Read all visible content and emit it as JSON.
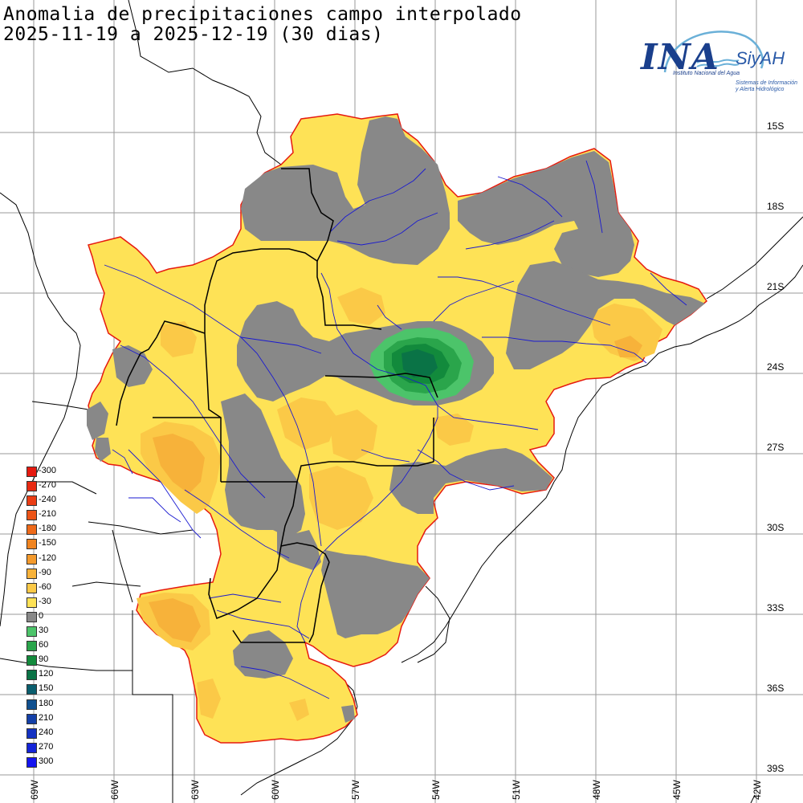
{
  "title_line1": "Anomalia de precipitaciones campo interpolado",
  "title_line2": "2025-11-19 a 2025-12-19 (30 dias)",
  "logo": {
    "main": "INA",
    "product": "SiyAH",
    "subtitle": "Instituto Nacional del Agua",
    "product_subtitle_1": "Sistemas de Información",
    "product_subtitle_2": "y Alerta Hidrológico"
  },
  "latitude_labels": [
    "15S",
    "18S",
    "21S",
    "24S",
    "27S",
    "30S",
    "33S",
    "36S",
    "39S"
  ],
  "longitude_labels": [
    "69W",
    "66W",
    "63W",
    "60W",
    "57W",
    "54W",
    "51W",
    "48W",
    "45W",
    "42W"
  ],
  "legend": [
    {
      "label": "-300",
      "color": "#e6190f"
    },
    {
      "label": "-270",
      "color": "#e82a12"
    },
    {
      "label": "-240",
      "color": "#ea3d14"
    },
    {
      "label": "-210",
      "color": "#ec5417"
    },
    {
      "label": "-180",
      "color": "#ee6a1a"
    },
    {
      "label": "-150",
      "color": "#f08420"
    },
    {
      "label": "-120",
      "color": "#f49a2c"
    },
    {
      "label": "-90",
      "color": "#f7b23a"
    },
    {
      "label": "-60",
      "color": "#fbc947"
    },
    {
      "label": "-30",
      "color": "#fee256"
    },
    {
      "label": "0",
      "color": "#888888"
    },
    {
      "label": "30",
      "color": "#4cc46a"
    },
    {
      "label": "60",
      "color": "#2aa54b"
    },
    {
      "label": "90",
      "color": "#128a3c"
    },
    {
      "label": "120",
      "color": "#0a7346"
    },
    {
      "label": "150",
      "color": "#0a5e6e"
    },
    {
      "label": "180",
      "color": "#10508f"
    },
    {
      "label": "210",
      "color": "#1440a8"
    },
    {
      "label": "240",
      "color": "#1432c2"
    },
    {
      "label": "270",
      "color": "#1424d8"
    },
    {
      "label": "300",
      "color": "#1414f0"
    }
  ]
}
